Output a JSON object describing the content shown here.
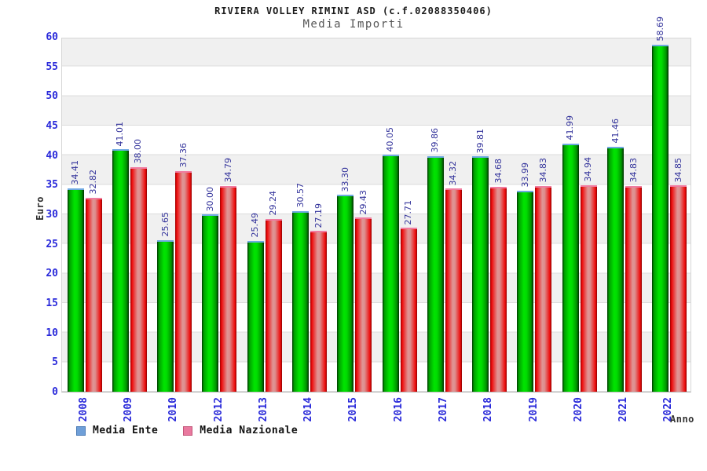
{
  "header": {
    "title": "RIVIERA VOLLEY RIMINI ASD (c.f.02088350406)",
    "subtitle": "Media Importi"
  },
  "axes": {
    "y_label": "Euro",
    "x_label": "Anno",
    "y_ticks": [
      0,
      5,
      10,
      15,
      20,
      25,
      30,
      35,
      40,
      45,
      50,
      55,
      60
    ],
    "tick_color": "#2a2ada",
    "value_label_color": "#33339b"
  },
  "legend": {
    "position": "bottom-left",
    "items": [
      {
        "label": "Media Ente",
        "swatch_color": "#6f9fd8"
      },
      {
        "label": "Media Nazionale",
        "swatch_color": "#e9799f"
      }
    ]
  },
  "chart_data": {
    "type": "bar",
    "title": "RIVIERA VOLLEY RIMINI ASD (c.f.02088350406)",
    "subtitle": "Media Importi",
    "xlabel": "Anno",
    "ylabel": "Euro",
    "ylim": [
      0,
      60
    ],
    "ytick_step": 5,
    "grid": "horizontal-bands",
    "legend_position": "bottom",
    "value_labels": "rotated-90, two decimals, above bars",
    "categories": [
      "2008",
      "2009",
      "2010",
      "2012",
      "2013",
      "2014",
      "2015",
      "2016",
      "2017",
      "2018",
      "2019",
      "2020",
      "2021",
      "2022"
    ],
    "series": [
      {
        "name": "Media Ente",
        "bar_color": "green gradient",
        "cap_color": "#6fa9e2",
        "values": [
          34.41,
          41.01,
          25.65,
          30.0,
          25.49,
          30.57,
          33.3,
          40.05,
          39.86,
          39.81,
          33.99,
          41.99,
          41.46,
          58.69
        ]
      },
      {
        "name": "Media Nazionale",
        "bar_color": "red gradient",
        "cap_color": "#f07ca0",
        "values": [
          32.82,
          38.0,
          37.36,
          34.79,
          29.24,
          27.19,
          29.43,
          27.71,
          34.32,
          34.68,
          34.83,
          34.94,
          34.83,
          34.85
        ]
      }
    ]
  }
}
